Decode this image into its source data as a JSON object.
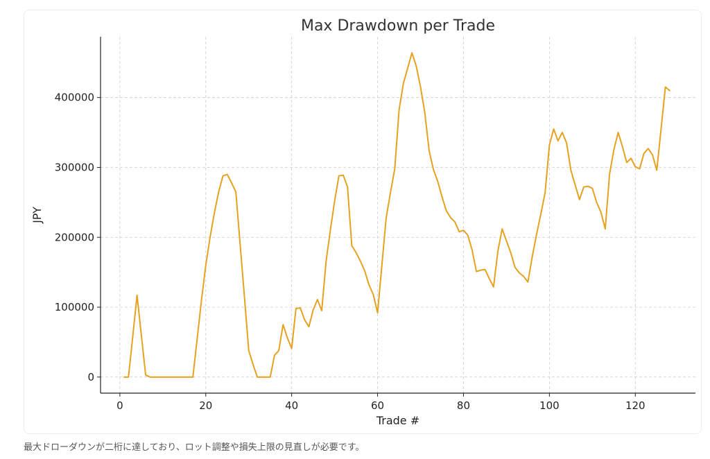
{
  "chart_data": {
    "type": "line",
    "title": "Max Drawdown per Trade",
    "xlabel": "Trade #",
    "ylabel": "JPY",
    "xlim": [
      -4.5,
      134
    ],
    "ylim": [
      -23000,
      487000
    ],
    "xticks": [
      0,
      20,
      40,
      60,
      80,
      100,
      120
    ],
    "yticks": [
      0,
      100000,
      200000,
      300000,
      400000
    ],
    "grid": true,
    "line_color": "#E6A11E",
    "series": [
      {
        "x": [
          1,
          2,
          3,
          4,
          5,
          6,
          7,
          8,
          9,
          10,
          11,
          12,
          13,
          14,
          15,
          16,
          17,
          18,
          19,
          20,
          21,
          22,
          23,
          24,
          25,
          26,
          27,
          28,
          29,
          30,
          31,
          32,
          33,
          34,
          35,
          36,
          37,
          38,
          39,
          40,
          41,
          42,
          43,
          44,
          45,
          46,
          47,
          48,
          49,
          50,
          51,
          52,
          53,
          54,
          55,
          56,
          57,
          58,
          59,
          60,
          61,
          62,
          63,
          64,
          65,
          66,
          67,
          68,
          69,
          70,
          71,
          72,
          73,
          74,
          75,
          76,
          77,
          78,
          79,
          80,
          81,
          82,
          83,
          84,
          85,
          86,
          87,
          88,
          89,
          90,
          91,
          92,
          93,
          94,
          95,
          96,
          97,
          98,
          99,
          100,
          101,
          102,
          103,
          104,
          105,
          106,
          107,
          108,
          109,
          110,
          111,
          112,
          113,
          114,
          115,
          116,
          117,
          118,
          119,
          120,
          121,
          122,
          123,
          124,
          125,
          126,
          127,
          128
        ],
        "values": [
          0,
          0,
          58000,
          117000,
          60000,
          3000,
          0,
          0,
          0,
          0,
          0,
          0,
          0,
          0,
          0,
          0,
          0,
          55000,
          110000,
          160000,
          200000,
          235000,
          265000,
          288000,
          290000,
          278000,
          265000,
          190000,
          115000,
          38000,
          18000,
          0,
          0,
          0,
          0,
          31000,
          38000,
          75000,
          56000,
          41000,
          98000,
          99000,
          82000,
          72000,
          96000,
          111000,
          95000,
          165000,
          210000,
          252000,
          288000,
          289000,
          272000,
          188000,
          178000,
          166000,
          152000,
          132000,
          118000,
          92000,
          160000,
          228000,
          264000,
          298000,
          382000,
          420000,
          442000,
          464000,
          445000,
          415000,
          378000,
          324000,
          297000,
          280000,
          258000,
          238000,
          228000,
          222000,
          208000,
          210000,
          203000,
          182000,
          151000,
          153000,
          154000,
          141000,
          129000,
          180000,
          212000,
          195000,
          178000,
          157000,
          149000,
          144000,
          136000,
          172000,
          204000,
          233000,
          264000,
          332000,
          355000,
          338000,
          350000,
          335000,
          296000,
          275000,
          254000,
          272000,
          273000,
          270000,
          250000,
          236000,
          212000,
          290000,
          325000,
          350000,
          330000,
          307000,
          313000,
          301000,
          298000,
          320000,
          327000,
          318000,
          296000,
          355000,
          415000,
          410000
        ]
      }
    ]
  },
  "caption": "最大ドローダウンが二桁に達しており、ロット調整や損失上限の見直しが必要です。"
}
